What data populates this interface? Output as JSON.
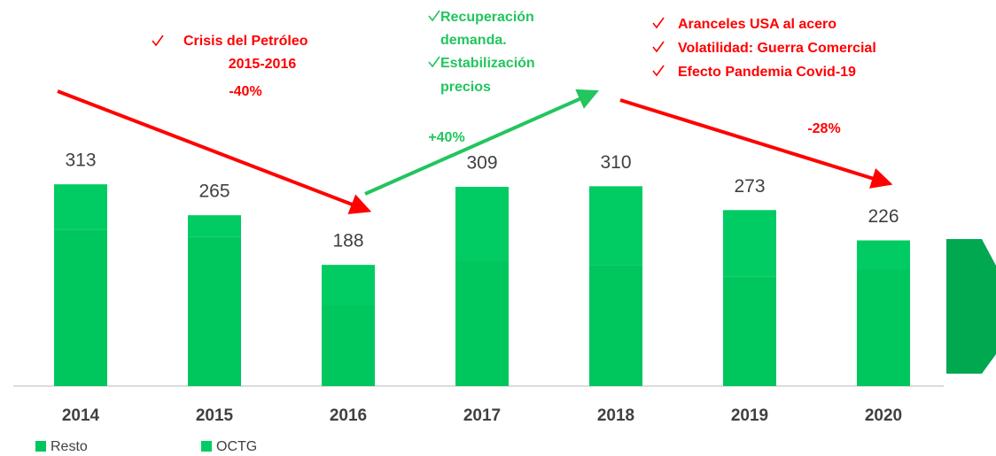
{
  "chart_data": {
    "type": "stacked_bar",
    "categories": [
      "2014",
      "2015",
      "2016",
      "2017",
      "2018",
      "2019",
      "2020"
    ],
    "series": [
      {
        "name": "Resto",
        "color": "#00c65e",
        "values": [
          242,
          231,
          125,
          195,
          188,
          170,
          182
        ]
      },
      {
        "name": "OCTG",
        "color": "#00cc63",
        "values": [
          71,
          34,
          63,
          114,
          122,
          103,
          44
        ]
      }
    ],
    "total_labels": [
      313,
      265,
      188,
      309,
      310,
      273,
      226
    ],
    "ylim": [
      0,
      340
    ],
    "annotations": [
      {
        "lines": [
          "Crisis del Petróleo",
          "2015-2016"
        ],
        "color": "#ff0000"
      },
      {
        "lines": [
          "-40%"
        ],
        "color": "#ff0000"
      },
      {
        "lines": [
          "Recuperación",
          "demanda.",
          "Estabilización",
          "precios"
        ],
        "color": "#22c55e"
      },
      {
        "lines": [
          "+40%"
        ],
        "color": "#22c55e"
      },
      {
        "lines": [
          "Aranceles USA al acero",
          "Volatilidad: Guerra Comercial",
          "Efecto Pandemia Covid-19"
        ],
        "color": "#ff0000"
      },
      {
        "lines": [
          "-28%"
        ],
        "color": "#ff0000"
      }
    ]
  }
}
